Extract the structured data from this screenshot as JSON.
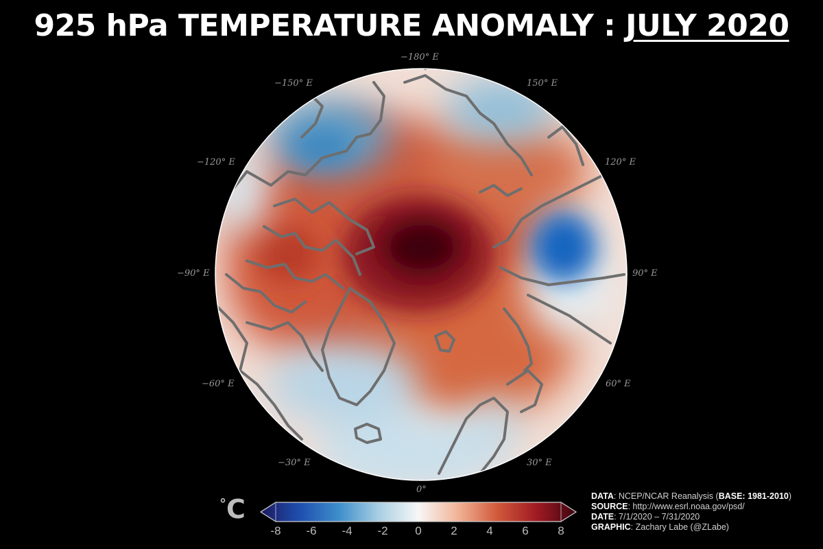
{
  "title": {
    "main": "925 hPa TEMPERATURE ANOMALY : ",
    "date": "JULY 2020"
  },
  "longitude_labels": [
    "−180° E",
    "150° E",
    "120° E",
    "90° E",
    "60° E",
    "30° E",
    "0°",
    "−30° E",
    "−60° E",
    "−90° E",
    "−120° E",
    "−150° E"
  ],
  "colorbar": {
    "unit_symbol": "°",
    "unit_letter": "C",
    "ticks": [
      "-8",
      "-6",
      "-4",
      "-2",
      "0",
      "2",
      "4",
      "6",
      "8"
    ],
    "range": [
      -8,
      8
    ],
    "colors": [
      "#1c1a5e",
      "#1f5fb8",
      "#4a94cc",
      "#b8d7e6",
      "#f5f5f5",
      "#f0b9a0",
      "#d3623f",
      "#a51e24",
      "#4a0512"
    ]
  },
  "credits": [
    {
      "key": "DATA",
      "text": ": NCEP/NCAR Reanalysis (",
      "key2": "BASE: 1981-2010",
      "tail": ")"
    },
    {
      "key": "SOURCE",
      "text": ": http://www.esrl.noaa.gov/psd/",
      "key2": "",
      "tail": ""
    },
    {
      "key": "DATE",
      "text": ": 7/1/2020 – 7/31/2020",
      "key2": "",
      "tail": ""
    },
    {
      "key": "GRAPHIC",
      "text": ": Zachary Labe (@ZLabe)",
      "key2": "",
      "tail": ""
    }
  ],
  "map_colors": {
    "land_outline": "#6e6e6e",
    "extreme_warm": "#3d0510",
    "warm": "#b83a25",
    "neutral": "#f6f4f3",
    "cool": "#6aa6cd",
    "extreme_cool": "#1565c0"
  }
}
